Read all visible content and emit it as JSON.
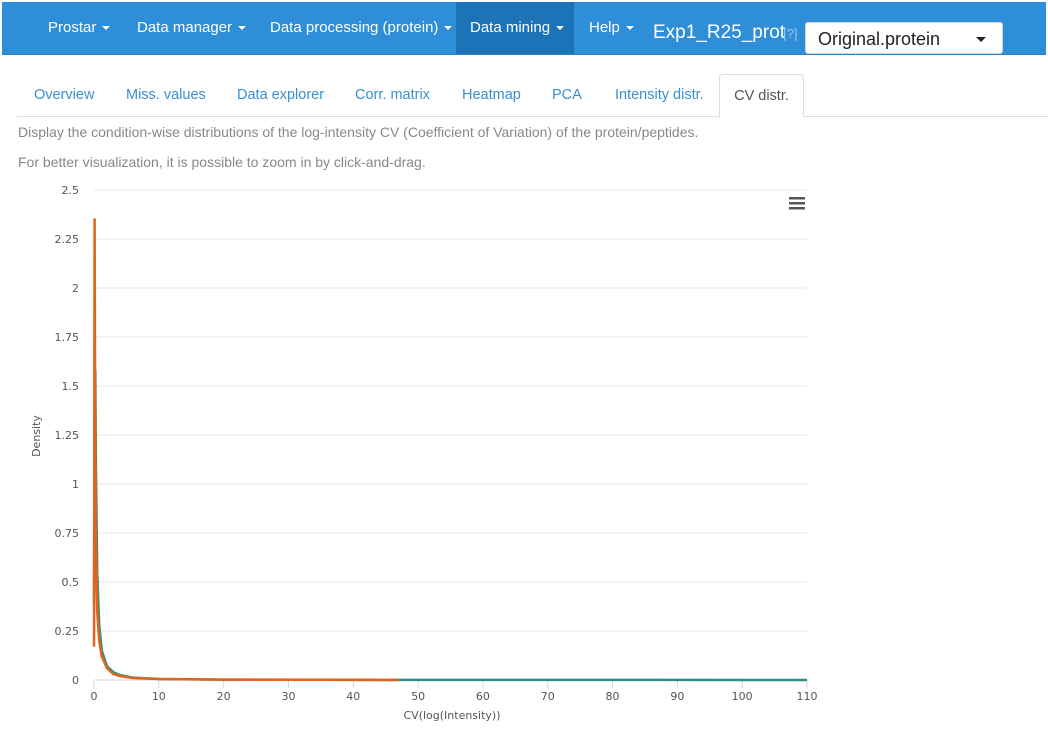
{
  "navbar": {
    "items": [
      {
        "label": "Prostar"
      },
      {
        "label": "Data manager"
      },
      {
        "label": "Data processing (protein)"
      },
      {
        "label": "Data mining"
      },
      {
        "label": "Help"
      }
    ],
    "dataset_title": "Exp1_R25_prot",
    "help_marker": "[?]",
    "dataset_select_value": "Original.protein"
  },
  "tabs": [
    {
      "label": "Overview"
    },
    {
      "label": "Miss. values"
    },
    {
      "label": "Data explorer"
    },
    {
      "label": "Corr. matrix"
    },
    {
      "label": "Heatmap"
    },
    {
      "label": "PCA"
    },
    {
      "label": "Intensity distr."
    },
    {
      "label": "CV distr."
    }
  ],
  "description": {
    "line1": "Display the condition-wise distributions of the log-intensity CV (Coefficient of Variation) of the protein/peptides.",
    "line2": "For better visualization, it is possible to zoom in by click-and-drag."
  },
  "colors": {
    "navbar": "#2f8ed8",
    "navbar_active": "#1d73b8",
    "series_orange": "#e0651a",
    "series_teal": "#2a8f8a"
  },
  "chart_data": {
    "type": "line",
    "xlabel": "CV(log(Intensity))",
    "ylabel": "Density",
    "xlim": [
      0,
      110
    ],
    "ylim": [
      0,
      2.5
    ],
    "x_ticks": [
      0,
      10,
      20,
      30,
      40,
      50,
      60,
      70,
      80,
      90,
      100,
      110
    ],
    "y_ticks": [
      0,
      0.25,
      0.5,
      0.75,
      1,
      1.25,
      1.5,
      1.75,
      2,
      2.25,
      2.5
    ],
    "y_tick_labels": [
      "0",
      "0.25",
      "0.5",
      "0.75",
      "1",
      "1.25",
      "1.5",
      "1.75",
      "2",
      "2.25",
      "2.5"
    ],
    "grid": true,
    "series": [
      {
        "color": "#2a8f8a",
        "x": [
          0,
          0.1,
          0.2,
          0.3,
          0.5,
          0.8,
          1.2,
          2,
          3,
          4,
          6,
          10,
          20,
          40,
          60,
          80,
          100,
          110
        ],
        "y": [
          0.4,
          1.3,
          1.58,
          1.1,
          0.55,
          0.28,
          0.15,
          0.07,
          0.04,
          0.025,
          0.012,
          0.005,
          0.002,
          0.001,
          0.0005,
          0.0003,
          0.0002,
          0.0001
        ]
      },
      {
        "color": "#e0651a",
        "x": [
          0,
          0.1,
          0.2,
          0.3,
          0.5,
          0.8,
          1.2,
          2,
          3,
          4,
          6,
          10,
          20,
          30,
          40,
          47
        ],
        "y": [
          0.17,
          2.35,
          1.2,
          0.7,
          0.35,
          0.2,
          0.12,
          0.06,
          0.03,
          0.02,
          0.01,
          0.005,
          0.002,
          0.001,
          0.0005,
          0.0002
        ]
      }
    ]
  }
}
